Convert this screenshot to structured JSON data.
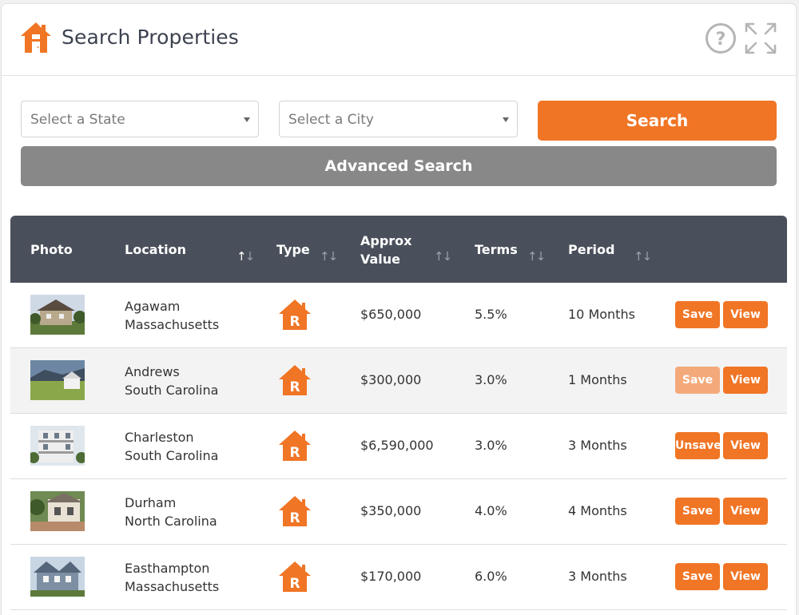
{
  "header": {
    "title": "Search Properties"
  },
  "filters": {
    "state_placeholder": "Select a State",
    "city_placeholder": "Select a City",
    "search_label": "Search",
    "advanced_label": "Advanced Search"
  },
  "table": {
    "columns": {
      "photo": "Photo",
      "location": "Location",
      "type": "Type",
      "value_line1": "Approx",
      "value_line2": "Value",
      "terms": "Terms",
      "period": "Period"
    },
    "type_badge_letter": "R",
    "rows": [
      {
        "city": "Agawam",
        "state": "Massachusetts",
        "value": "$650,000",
        "terms": "5.5%",
        "period": "10 Months",
        "save_label": "Save",
        "view_label": "View"
      },
      {
        "city": "Andrews",
        "state": "South Carolina",
        "value": "$300,000",
        "terms": "3.0%",
        "period": "1 Months",
        "save_label": "Save",
        "view_label": "View"
      },
      {
        "city": "Charleston",
        "state": "South Carolina",
        "value": "$6,590,000",
        "terms": "3.0%",
        "period": "3 Months",
        "save_label": "Unsave",
        "view_label": "View"
      },
      {
        "city": "Durham",
        "state": "North Carolina",
        "value": "$350,000",
        "terms": "4.0%",
        "period": "4 Months",
        "save_label": "Save",
        "view_label": "View"
      },
      {
        "city": "Easthampton",
        "state": "Massachusetts",
        "value": "$170,000",
        "terms": "6.0%",
        "period": "3 Months",
        "save_label": "Save",
        "view_label": "View"
      }
    ]
  },
  "colors": {
    "accent": "#f07525",
    "accent_faded": "#f4a97b",
    "header_bg": "#4a505b",
    "secondary_button": "#888888"
  },
  "icons": {
    "brand": "house-icon",
    "help": "help-circle-icon",
    "expand": "expand-arrows-icon",
    "sort": "sort-arrows-icon",
    "type": "rental-house-icon"
  }
}
